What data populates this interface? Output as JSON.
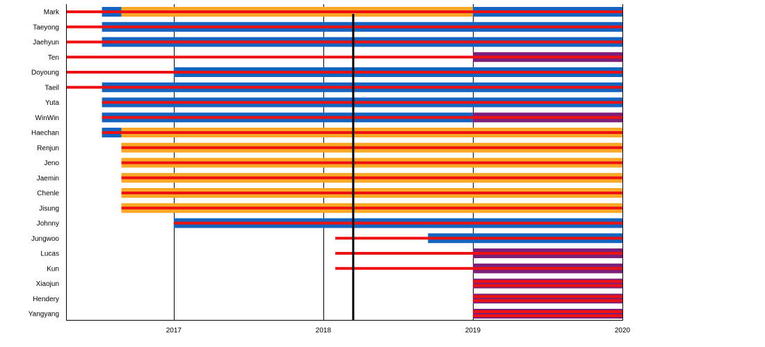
{
  "chart_data": {
    "type": "timeline",
    "x_axis": {
      "min": 2016.28,
      "max": 2020.0,
      "tick_labels": [
        "2017",
        "2018",
        "2019",
        "2020"
      ],
      "tick_values": [
        2017.0,
        2018.0,
        2019.0,
        2020.0
      ]
    },
    "marker_line": {
      "value": 2018.2,
      "color": "#000000"
    },
    "colors": {
      "red": "#ee1111",
      "blue": "#1565c0",
      "orange": "#f9a825",
      "purple": "#7b1f7a",
      "gridline": "#000000"
    },
    "members": [
      {
        "name": "Mark",
        "bars": [
          {
            "start": 2016.52,
            "end": 2016.65,
            "color": "blue"
          },
          {
            "start": 2016.65,
            "end": 2019.0,
            "color": "orange"
          },
          {
            "start": 2019.0,
            "end": 2020.0,
            "color": "blue"
          }
        ],
        "lines": [
          {
            "start": 2016.28,
            "end": 2020.0
          }
        ]
      },
      {
        "name": "Taeyong",
        "bars": [
          {
            "start": 2016.52,
            "end": 2020.0,
            "color": "blue"
          }
        ],
        "lines": [
          {
            "start": 2016.28,
            "end": 2020.0
          }
        ]
      },
      {
        "name": "Jaehyun",
        "bars": [
          {
            "start": 2016.52,
            "end": 2020.0,
            "color": "blue"
          }
        ],
        "lines": [
          {
            "start": 2016.28,
            "end": 2020.0
          }
        ]
      },
      {
        "name": "Ten",
        "bars": [
          {
            "start": 2019.0,
            "end": 2020.0,
            "color": "purple"
          }
        ],
        "lines": [
          {
            "start": 2016.28,
            "end": 2020.0
          }
        ]
      },
      {
        "name": "Doyoung",
        "bars": [
          {
            "start": 2017.0,
            "end": 2020.0,
            "color": "blue"
          }
        ],
        "lines": [
          {
            "start": 2016.28,
            "end": 2020.0
          }
        ]
      },
      {
        "name": "Taeil",
        "bars": [
          {
            "start": 2016.52,
            "end": 2020.0,
            "color": "blue"
          }
        ],
        "lines": [
          {
            "start": 2016.28,
            "end": 2020.0
          }
        ]
      },
      {
        "name": "Yuta",
        "bars": [
          {
            "start": 2016.52,
            "end": 2020.0,
            "color": "blue"
          }
        ],
        "lines": [
          {
            "start": 2016.52,
            "end": 2020.0
          }
        ]
      },
      {
        "name": "WinWin",
        "bars": [
          {
            "start": 2016.52,
            "end": 2019.0,
            "color": "blue"
          },
          {
            "start": 2019.0,
            "end": 2020.0,
            "color": "purple"
          }
        ],
        "lines": [
          {
            "start": 2016.52,
            "end": 2020.0
          }
        ]
      },
      {
        "name": "Haechan",
        "bars": [
          {
            "start": 2016.52,
            "end": 2016.65,
            "color": "blue"
          },
          {
            "start": 2016.65,
            "end": 2020.0,
            "color": "orange"
          }
        ],
        "lines": [
          {
            "start": 2016.52,
            "end": 2020.0
          }
        ]
      },
      {
        "name": "Renjun",
        "bars": [
          {
            "start": 2016.65,
            "end": 2020.0,
            "color": "orange"
          }
        ],
        "lines": [
          {
            "start": 2016.65,
            "end": 2020.0
          }
        ]
      },
      {
        "name": "Jeno",
        "bars": [
          {
            "start": 2016.65,
            "end": 2020.0,
            "color": "orange"
          }
        ],
        "lines": [
          {
            "start": 2016.65,
            "end": 2020.0
          }
        ]
      },
      {
        "name": "Jaemin",
        "bars": [
          {
            "start": 2016.65,
            "end": 2020.0,
            "color": "orange"
          }
        ],
        "lines": [
          {
            "start": 2016.65,
            "end": 2020.0
          }
        ]
      },
      {
        "name": "Chenle",
        "bars": [
          {
            "start": 2016.65,
            "end": 2020.0,
            "color": "orange"
          }
        ],
        "lines": [
          {
            "start": 2016.65,
            "end": 2020.0
          }
        ]
      },
      {
        "name": "Jisung",
        "bars": [
          {
            "start": 2016.65,
            "end": 2020.0,
            "color": "orange"
          }
        ],
        "lines": [
          {
            "start": 2016.65,
            "end": 2020.0
          }
        ]
      },
      {
        "name": "Johnny",
        "bars": [
          {
            "start": 2017.0,
            "end": 2020.0,
            "color": "blue"
          }
        ],
        "lines": [
          {
            "start": 2017.0,
            "end": 2020.0
          }
        ]
      },
      {
        "name": "Jungwoo",
        "bars": [
          {
            "start": 2018.7,
            "end": 2020.0,
            "color": "blue"
          }
        ],
        "lines": [
          {
            "start": 2018.08,
            "end": 2020.0
          }
        ]
      },
      {
        "name": "Lucas",
        "bars": [
          {
            "start": 2019.0,
            "end": 2020.0,
            "color": "purple"
          }
        ],
        "lines": [
          {
            "start": 2018.08,
            "end": 2020.0
          }
        ]
      },
      {
        "name": "Kun",
        "bars": [
          {
            "start": 2019.0,
            "end": 2020.0,
            "color": "purple"
          }
        ],
        "lines": [
          {
            "start": 2018.08,
            "end": 2020.0
          }
        ]
      },
      {
        "name": "Xiaojun",
        "bars": [
          {
            "start": 2019.0,
            "end": 2020.0,
            "color": "purple"
          }
        ],
        "lines": [
          {
            "start": 2019.0,
            "end": 2020.0
          },
          {
            "start": 2019.0,
            "end": 2020.0
          }
        ]
      },
      {
        "name": "Hendery",
        "bars": [
          {
            "start": 2019.0,
            "end": 2020.0,
            "color": "purple"
          }
        ],
        "lines": [
          {
            "start": 2019.0,
            "end": 2020.0
          },
          {
            "start": 2019.0,
            "end": 2020.0
          }
        ]
      },
      {
        "name": "Yangyang",
        "bars": [
          {
            "start": 2019.0,
            "end": 2020.0,
            "color": "purple"
          }
        ],
        "lines": [
          {
            "start": 2019.0,
            "end": 2020.0
          },
          {
            "start": 2019.0,
            "end": 2020.0
          }
        ]
      }
    ]
  }
}
